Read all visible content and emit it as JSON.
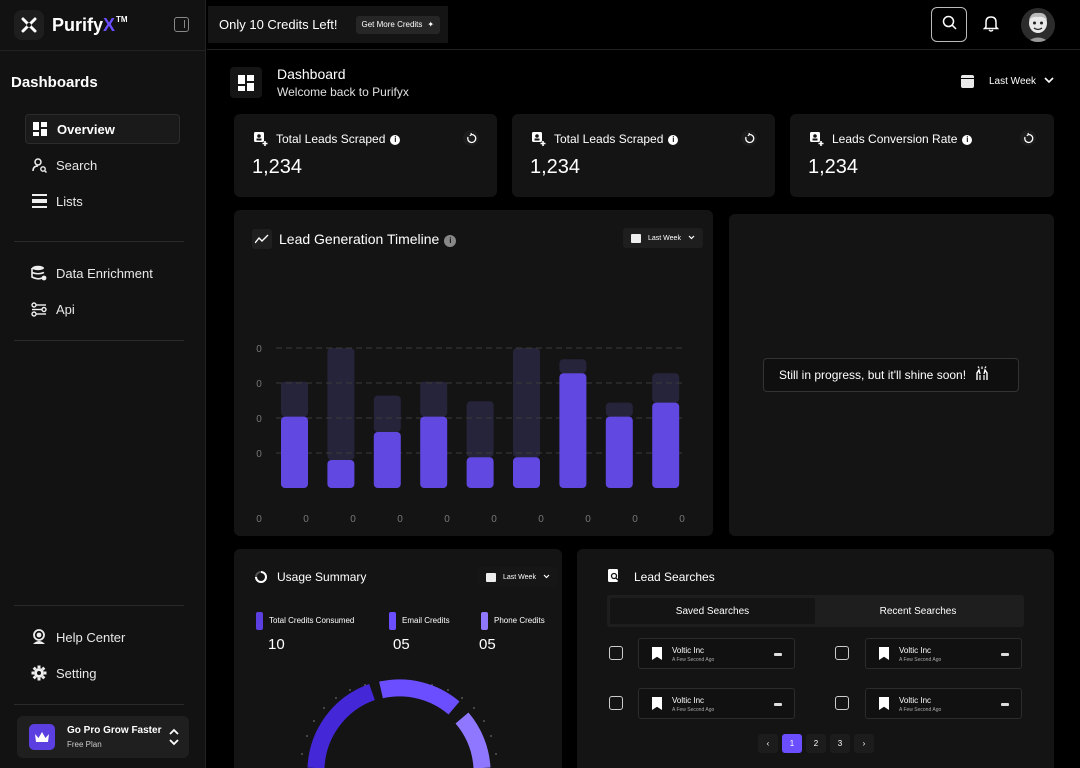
{
  "brand": {
    "name_main": "Purify",
    "name_accent": "X",
    "tm": "TM"
  },
  "sidebar": {
    "heading": "Dashboards",
    "items": [
      {
        "label": "Overview",
        "icon": "grid-icon",
        "active": true
      },
      {
        "label": "Search",
        "icon": "user-search-icon"
      },
      {
        "label": "Lists",
        "icon": "list-icon"
      },
      {
        "label": "Data Enrichment",
        "icon": "database-icon"
      },
      {
        "label": "Api",
        "icon": "api-icon"
      },
      {
        "label": "Help Center",
        "icon": "headset-icon"
      },
      {
        "label": "Setting",
        "icon": "gear-icon"
      }
    ],
    "upgrade": {
      "title": "Go Pro Grow Faster",
      "subtitle": "Free Plan"
    }
  },
  "topbar": {
    "credits_text": "Only 10 Credits Left!",
    "credits_button": "Get More Credits"
  },
  "page": {
    "title": "Dashboard",
    "subtitle": "Welcome back to Purifyx",
    "range": "Last Week"
  },
  "stats": [
    {
      "label": "Total Leads Scraped",
      "value": "1,234"
    },
    {
      "label": "Total Leads Scraped",
      "value": "1,234"
    },
    {
      "label": "Leads Conversion Rate",
      "value": "1,234"
    }
  ],
  "timeline": {
    "title": "Lead Generation Timeline",
    "range": "Last Week"
  },
  "chart_data": {
    "type": "bar",
    "stacked": true,
    "y_tick_labels": [
      "0",
      "0",
      "0",
      "0"
    ],
    "x_tick_labels": [
      "0",
      "0",
      "0",
      "0",
      "0",
      "0",
      "0",
      "0",
      "0",
      "0"
    ],
    "ylim": [
      0,
      100
    ],
    "grid": true,
    "series": [
      {
        "values": [
          51,
          20,
          40,
          51,
          22,
          22,
          82,
          51,
          61
        ]
      },
      {
        "values": [
          25,
          80,
          26,
          25,
          40,
          78,
          10,
          10,
          21
        ]
      }
    ],
    "colors": [
      "#6048e0",
      "#26243a"
    ]
  },
  "progress_message": "Still in progress, but it'll shine soon!",
  "usage": {
    "title": "Usage Summary",
    "range": "Last Week",
    "legend": [
      {
        "label": "Total Credits Consumed",
        "value": "10",
        "color": "#5b3fe0"
      },
      {
        "label": "Email Credits",
        "value": "05",
        "color": "#6b4eff"
      },
      {
        "label": "Phone Credits",
        "value": "05",
        "color": "#8f78ff"
      }
    ]
  },
  "lead_searches": {
    "title": "Lead Searches",
    "tabs": [
      "Saved Searches",
      "Recent Searches"
    ],
    "results": [
      {
        "name": "Voltic Inc",
        "time": "A Few Second Ago"
      },
      {
        "name": "Voltic Inc",
        "time": "A Few Second Ago"
      },
      {
        "name": "Voltic Inc",
        "time": "A Few Second Ago"
      },
      {
        "name": "Voltic Inc",
        "time": "A Few Second Ago"
      }
    ],
    "pages": [
      "1",
      "2",
      "3"
    ],
    "prev": "‹",
    "next": "›"
  }
}
